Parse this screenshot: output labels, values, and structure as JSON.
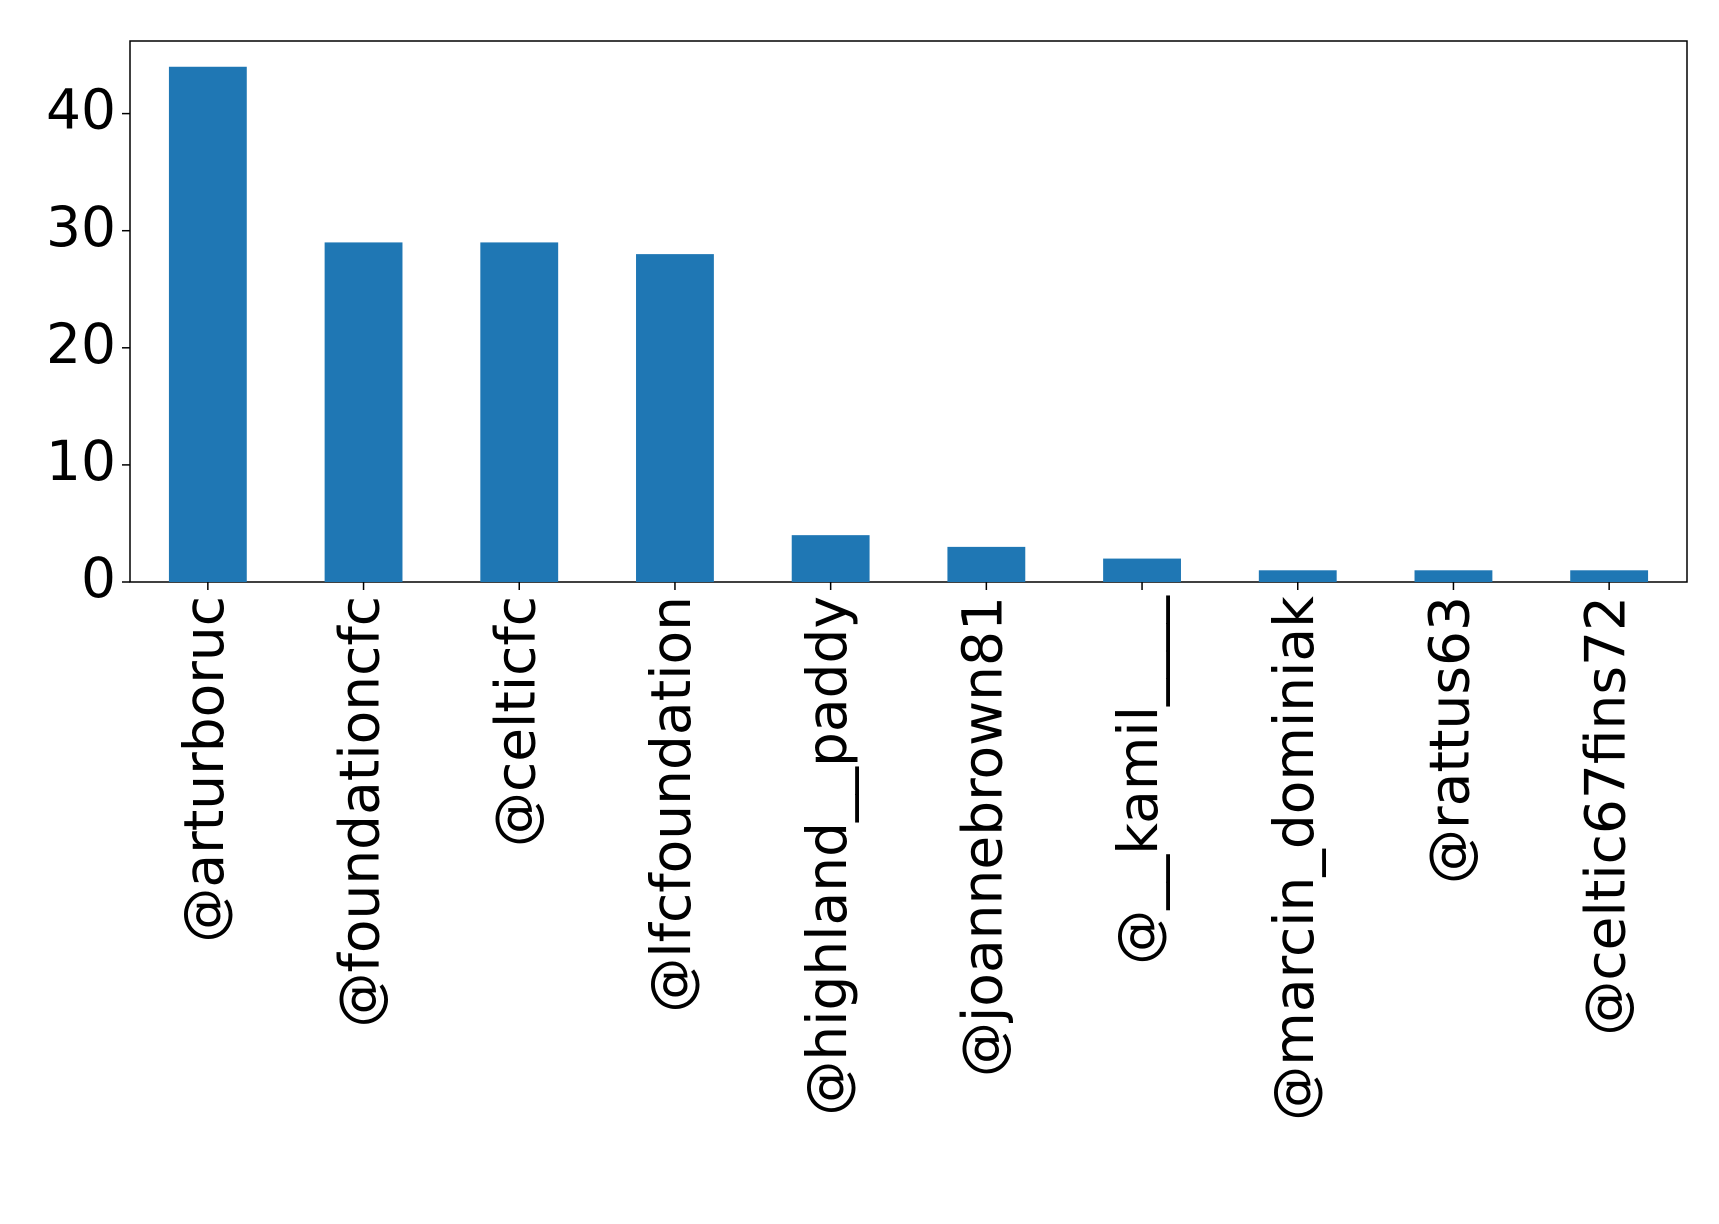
{
  "chart_data": {
    "type": "bar",
    "categories": [
      "@arturboruc",
      "@foundationcfc",
      "@celticfc",
      "@lfcfoundation",
      "@highland__paddy",
      "@joannebrown81",
      "@__kamil____",
      "@marcin_dominiak",
      "@rattus63",
      "@celtic67fins72"
    ],
    "values": [
      44,
      29,
      29,
      28,
      4,
      3,
      2,
      1,
      1,
      1
    ],
    "color": "#1f77b4",
    "ylim": [
      0,
      46.2
    ],
    "yticks": [
      0,
      10,
      20,
      30,
      40
    ],
    "grid": false
  }
}
